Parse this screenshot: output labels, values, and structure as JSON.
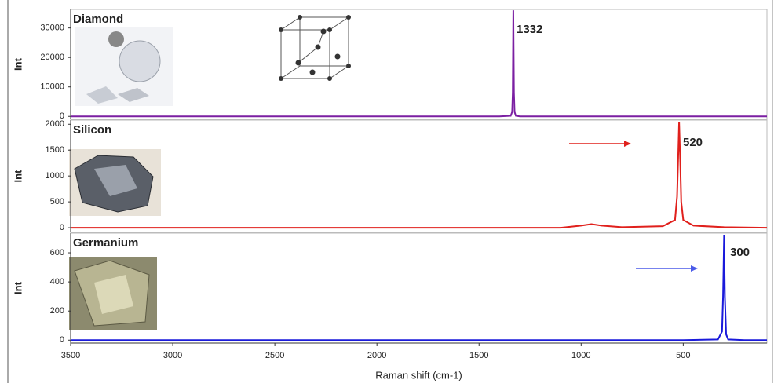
{
  "chart_data": [
    {
      "type": "line",
      "title": "Diamond",
      "ylabel": "Int",
      "annotation": "1332",
      "xlim": [
        3500,
        90
      ],
      "ylim": [
        -1000,
        36300
      ],
      "yticks": [
        0,
        10000,
        20000,
        30000
      ],
      "series": [
        {
          "name": "Diamond",
          "color": "#7b1fa2",
          "x": [
            3500,
            1400,
            1345,
            1338,
            1335,
            1332,
            1329,
            1326,
            1320,
            1300,
            90
          ],
          "values": [
            0,
            0,
            200,
            1500,
            8000,
            36000,
            8000,
            1500,
            200,
            0,
            0
          ]
        }
      ]
    },
    {
      "type": "line",
      "title": "Silicon",
      "ylabel": "Int",
      "annotation": "520",
      "xlim": [
        3500,
        90
      ],
      "ylim": [
        -90,
        2080
      ],
      "yticks": [
        0,
        500,
        1000,
        1500,
        2000
      ],
      "series": [
        {
          "name": "Silicon",
          "color": "#e0201c",
          "x": [
            3500,
            2000,
            1100,
            1000,
            950,
            900,
            800,
            600,
            540,
            530,
            525,
            520,
            515,
            510,
            500,
            450,
            300,
            90
          ],
          "values": [
            0,
            0,
            0,
            40,
            70,
            40,
            10,
            30,
            150,
            600,
            1300,
            2050,
            1300,
            500,
            150,
            40,
            10,
            0
          ]
        }
      ]
    },
    {
      "type": "line",
      "title": "Germanium",
      "ylabel": "Int",
      "annotation": "300",
      "xlabel": "Raman shift (cm-1)",
      "xlim": [
        3500,
        90
      ],
      "ylim": [
        -20,
        735
      ],
      "yticks": [
        0,
        200,
        400,
        600
      ],
      "xticks": [
        3500,
        3000,
        2500,
        2000,
        1500,
        1000,
        500
      ],
      "series": [
        {
          "name": "Germanium",
          "color": "#1a1adb",
          "x": [
            3500,
            2000,
            1000,
            500,
            330,
            310,
            305,
            300,
            296,
            290,
            280,
            200,
            90
          ],
          "values": [
            0,
            0,
            0,
            0,
            5,
            60,
            300,
            720,
            300,
            40,
            5,
            0,
            0
          ]
        }
      ]
    }
  ]
}
